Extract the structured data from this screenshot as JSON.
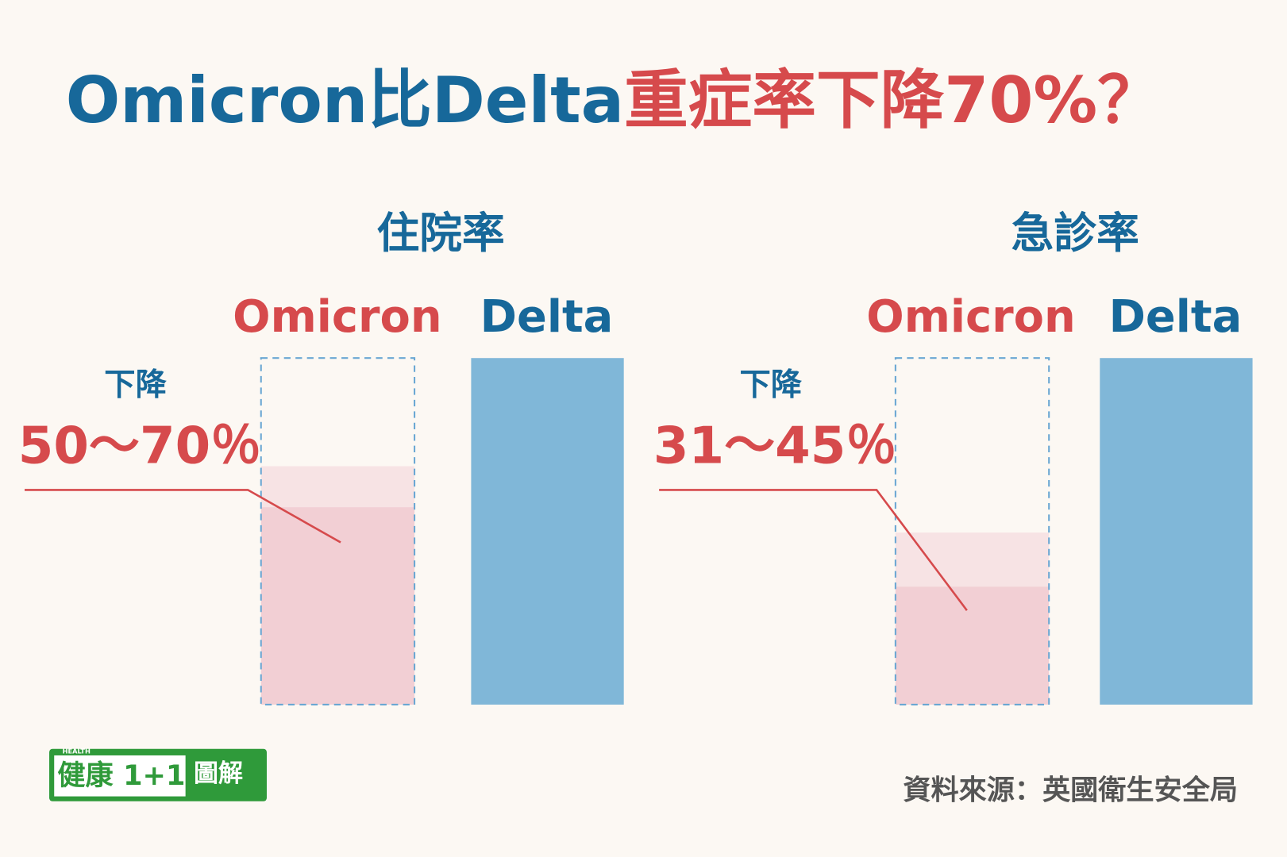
{
  "title": {
    "part1": "Omicron比Delta",
    "part2": "重症率下降70%？"
  },
  "panels": [
    {
      "title": "住院率",
      "labels": [
        "Omicron",
        "Delta"
      ],
      "drop_label": "下降",
      "drop_range": "50～70％"
    },
    {
      "title": "急診率",
      "labels": [
        "Omicron",
        "Delta"
      ],
      "drop_label": "下降",
      "drop_range": "31～45％"
    }
  ],
  "logo": {
    "tag": "HEALTH",
    "name": "健康",
    "number": "1+1",
    "suffix": "圖解"
  },
  "source": "資料來源：英國衛生安全局"
}
